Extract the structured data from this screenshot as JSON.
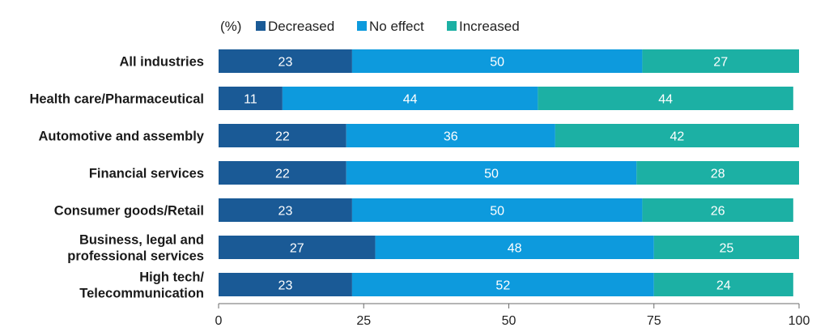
{
  "chart_data": {
    "type": "bar",
    "orientation": "horizontal",
    "stacked": true,
    "unit_label": "(%)",
    "categories": [
      [
        "All industries"
      ],
      [
        "Health care/Pharmaceutical"
      ],
      [
        "Automotive and assembly"
      ],
      [
        "Financial services"
      ],
      [
        "Consumer goods/Retail"
      ],
      [
        "Business, legal and",
        "professional services"
      ],
      [
        "High tech/",
        "Telecommunication"
      ]
    ],
    "series": [
      {
        "name": "Decreased",
        "color": "#1a5a96",
        "values": [
          23,
          11,
          22,
          22,
          23,
          27,
          23
        ]
      },
      {
        "name": "No effect",
        "color": "#0d9add",
        "values": [
          50,
          44,
          36,
          50,
          50,
          48,
          52
        ]
      },
      {
        "name": "Increased",
        "color": "#1cb0a4",
        "values": [
          27,
          44,
          42,
          28,
          26,
          25,
          24
        ]
      }
    ],
    "xlim": [
      0,
      100
    ],
    "xticks": [
      "0",
      "25",
      "50",
      "75",
      "100"
    ],
    "legend_position": "top",
    "grid": false
  }
}
